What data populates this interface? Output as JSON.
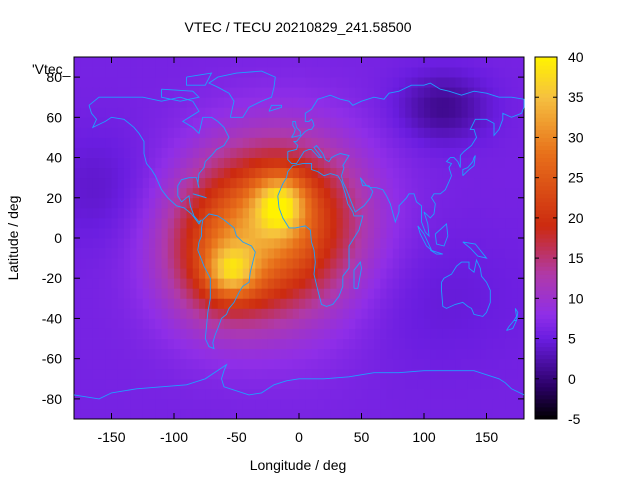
{
  "chart_data": {
    "type": "heatmap",
    "title": "VTEC / TECU 20210829_241.58500",
    "xlabel": "Longitude / deg",
    "ylabel": "Latitude / deg",
    "legend_key": "'Vtec_",
    "xlim": [
      -180,
      180
    ],
    "ylim": [
      -90,
      90
    ],
    "x_ticks": [
      -150,
      -100,
      -50,
      0,
      50,
      100,
      150
    ],
    "y_ticks": [
      -80,
      -60,
      -40,
      -20,
      0,
      20,
      40,
      60,
      80
    ],
    "colorbar": {
      "range": [
        -5,
        40
      ],
      "ticks": [
        -5,
        0,
        5,
        10,
        15,
        20,
        25,
        30,
        35,
        40
      ],
      "palette": [
        "#000000",
        "#2a0064",
        "#6a1de0",
        "#8f2ee8",
        "#b03aa8",
        "#cc2a10",
        "#e8701a",
        "#f5c040",
        "#fff200"
      ],
      "palette_stops": [
        -5,
        -1,
        5,
        8,
        13,
        19,
        28,
        35,
        40
      ]
    },
    "background_value": 6,
    "anomalies": [
      {
        "lon": -20,
        "lat": 10,
        "sigma_lon": 45,
        "sigma_lat": 28,
        "amp": 17
      },
      {
        "lon": -60,
        "lat": -10,
        "sigma_lon": 35,
        "sigma_lat": 25,
        "amp": 12
      },
      {
        "lon": -15,
        "lat": 17,
        "sigma_lon": 14,
        "sigma_lat": 10,
        "amp": 14
      },
      {
        "lon": -55,
        "lat": -17,
        "sigma_lon": 14,
        "sigma_lat": 9,
        "amp": 12
      },
      {
        "lon": 10,
        "lat": -5,
        "sigma_lon": 40,
        "sigma_lat": 35,
        "amp": 4
      },
      {
        "lon": 115,
        "lat": 65,
        "sigma_lon": 25,
        "sigma_lat": 12,
        "amp": -5
      },
      {
        "lon": -160,
        "lat": 25,
        "sigma_lon": 30,
        "sigma_lat": 20,
        "amp": -2
      },
      {
        "lon": 100,
        "lat": -30,
        "sigma_lon": 60,
        "sigma_lat": 25,
        "amp": -1.5
      }
    ]
  }
}
